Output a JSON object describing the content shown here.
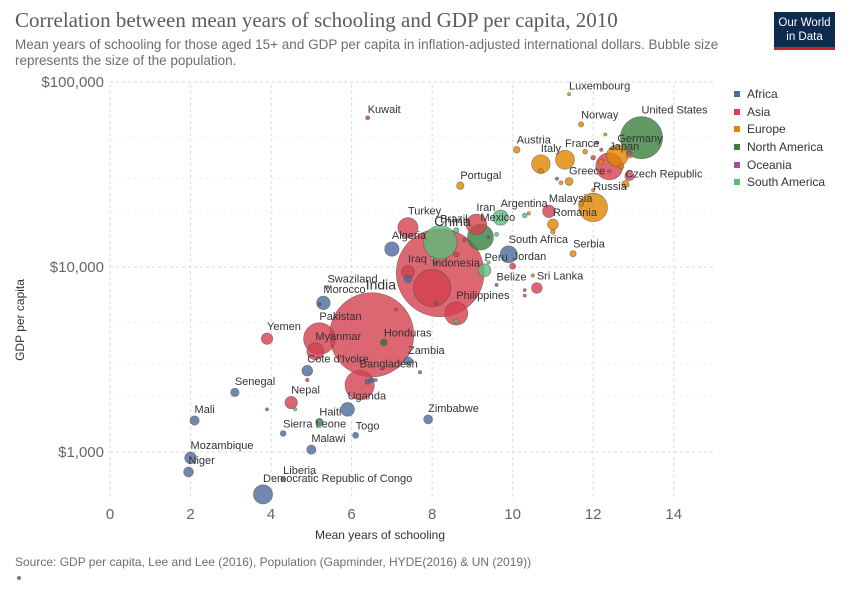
{
  "header": {
    "title": "Correlation between mean years of schooling and GDP per capita, 2010",
    "subtitle": "Mean years of schooling for those aged 15+ and GDP per capita in inflation-adjusted international dollars. Bubble size represents the size of the population."
  },
  "logo": {
    "line1": "Our World",
    "line2": "in Data"
  },
  "footer": {
    "source": "Source: GDP per capita, Lee and Lee (2016), Population (Gapminder, HYDE(2016) & UN (2019))"
  },
  "legend": {
    "items": [
      {
        "label": "Africa",
        "color": "#4c6a9c"
      },
      {
        "label": "Asia",
        "color": "#d3404e"
      },
      {
        "label": "Europe",
        "color": "#e08600"
      },
      {
        "label": "North America",
        "color": "#3a7f3f"
      },
      {
        "label": "Oceania",
        "color": "#a64ba5"
      },
      {
        "label": "South America",
        "color": "#5cbd7b"
      }
    ]
  },
  "chart_data": {
    "type": "scatter",
    "xlabel": "Mean years of schooling",
    "ylabel": "GDP per capita",
    "xlim": [
      0,
      15
    ],
    "ylim": [
      550,
      105000
    ],
    "y_scale": "log",
    "x_ticks": [
      "0",
      "2",
      "4",
      "6",
      "8",
      "10",
      "12",
      "14"
    ],
    "x_tick_values": [
      0,
      2,
      4,
      6,
      8,
      10,
      12,
      14
    ],
    "y_ticks": [
      "$1,000",
      "$10,000",
      "$100,000"
    ],
    "y_tick_values": [
      1000,
      10000,
      100000
    ],
    "grid": true,
    "legend_position": "right",
    "points": [
      {
        "name": "China",
        "region": "Asia",
        "x": 8.2,
        "y": 9300,
        "pop": 1340,
        "label": true
      },
      {
        "name": "India",
        "region": "Asia",
        "x": 6.5,
        "y": 4300,
        "pop": 1230,
        "label": true
      },
      {
        "name": "United States",
        "region": "North America",
        "x": 13.2,
        "y": 50000,
        "pop": 309,
        "label": true
      },
      {
        "name": "Indonesia",
        "region": "Asia",
        "x": 8.0,
        "y": 7700,
        "pop": 242,
        "label": true
      },
      {
        "name": "Brazil",
        "region": "South America",
        "x": 8.2,
        "y": 13600,
        "pop": 196,
        "label": true
      },
      {
        "name": "Pakistan",
        "region": "Asia",
        "x": 5.2,
        "y": 4100,
        "pop": 174,
        "label": true
      },
      {
        "name": "Bangladesh",
        "region": "Asia",
        "x": 6.2,
        "y": 2300,
        "pop": 150,
        "label": true
      },
      {
        "name": "Russia",
        "region": "Europe",
        "x": 12.0,
        "y": 21000,
        "pop": 143,
        "label": true
      },
      {
        "name": "Japan",
        "region": "Asia",
        "x": 12.4,
        "y": 35000,
        "pop": 128,
        "label": true
      },
      {
        "name": "Mexico",
        "region": "North America",
        "x": 9.2,
        "y": 14500,
        "pop": 117,
        "label": true
      },
      {
        "name": "Philippines",
        "region": "Asia",
        "x": 8.6,
        "y": 5600,
        "pop": 93,
        "label": true
      },
      {
        "name": "Germany",
        "region": "Europe",
        "x": 12.6,
        "y": 40000,
        "pop": 82,
        "label": true
      },
      {
        "name": "Iran",
        "region": "Asia",
        "x": 9.1,
        "y": 17000,
        "pop": 74,
        "label": true
      },
      {
        "name": "Turkey",
        "region": "Asia",
        "x": 7.4,
        "y": 16300,
        "pop": 72,
        "label": true
      },
      {
        "name": "France",
        "region": "Europe",
        "x": 11.3,
        "y": 38000,
        "pop": 63,
        "label": true
      },
      {
        "name": "Italy",
        "region": "Europe",
        "x": 10.7,
        "y": 36000,
        "pop": 60,
        "label": true
      },
      {
        "name": "South Africa",
        "region": "Africa",
        "x": 9.9,
        "y": 11700,
        "pop": 51,
        "label": true
      },
      {
        "name": "Myanmar",
        "region": "Asia",
        "x": 5.1,
        "y": 3500,
        "pop": 50,
        "label": true
      },
      {
        "name": "Argentina",
        "region": "South America",
        "x": 9.7,
        "y": 18500,
        "pop": 41,
        "label": true
      },
      {
        "name": "Algeria",
        "region": "Africa",
        "x": 7.0,
        "y": 12500,
        "pop": 36,
        "label": true
      },
      {
        "name": "Iraq",
        "region": "Asia",
        "x": 7.4,
        "y": 9400,
        "pop": 30,
        "label": true
      },
      {
        "name": "Peru",
        "region": "South America",
        "x": 9.3,
        "y": 9600,
        "pop": 29,
        "label": true
      },
      {
        "name": "Malaysia",
        "region": "Asia",
        "x": 10.9,
        "y": 20000,
        "pop": 28,
        "label": true
      },
      {
        "name": "Uganda",
        "region": "Africa",
        "x": 5.9,
        "y": 1700,
        "pop": 33,
        "label": true
      },
      {
        "name": "Morocco",
        "region": "Africa",
        "x": 5.3,
        "y": 6400,
        "pop": 32,
        "label": true
      },
      {
        "name": "Romania",
        "region": "Europe",
        "x": 11.0,
        "y": 17000,
        "pop": 20,
        "label": true
      },
      {
        "name": "Czech Republic",
        "region": "Europe",
        "x": 12.8,
        "y": 28000,
        "pop": 10,
        "label": true
      },
      {
        "name": "Greece",
        "region": "Europe",
        "x": 11.4,
        "y": 29000,
        "pop": 11,
        "label": true
      },
      {
        "name": "Austria",
        "region": "Europe",
        "x": 10.1,
        "y": 43000,
        "pop": 8,
        "label": true
      },
      {
        "name": "Portugal",
        "region": "Europe",
        "x": 8.7,
        "y": 27500,
        "pop": 10,
        "label": true
      },
      {
        "name": "Norway",
        "region": "Europe",
        "x": 11.7,
        "y": 59000,
        "pop": 5,
        "label": true
      },
      {
        "name": "Luxembourg",
        "region": "Europe",
        "x": 11.4,
        "y": 86000,
        "pop": 0.5,
        "label": true
      },
      {
        "name": "Kuwait",
        "region": "Asia",
        "x": 6.4,
        "y": 64000,
        "pop": 3,
        "label": true
      },
      {
        "name": "Serbia",
        "region": "Europe",
        "x": 11.5,
        "y": 11800,
        "pop": 7,
        "label": true
      },
      {
        "name": "Jordan",
        "region": "Asia",
        "x": 10.0,
        "y": 10100,
        "pop": 6.5,
        "label": true
      },
      {
        "name": "Belize",
        "region": "North America",
        "x": 9.6,
        "y": 8000,
        "pop": 0.3,
        "label": true
      },
      {
        "name": "Sri Lanka",
        "region": "Asia",
        "x": 10.6,
        "y": 7700,
        "pop": 20,
        "label": true
      },
      {
        "name": "Swaziland",
        "region": "Africa",
        "x": 5.4,
        "y": 7800,
        "pop": 1.1,
        "label": true
      },
      {
        "name": "Yemen",
        "region": "Asia",
        "x": 3.9,
        "y": 4100,
        "pop": 23,
        "label": true
      },
      {
        "name": "Honduras",
        "region": "North America",
        "x": 6.8,
        "y": 3900,
        "pop": 8,
        "label": true
      },
      {
        "name": "Cote d'Ivoire",
        "region": "Africa",
        "x": 4.9,
        "y": 2750,
        "pop": 20,
        "label": true
      },
      {
        "name": "Zambia",
        "region": "Africa",
        "x": 7.4,
        "y": 3100,
        "pop": 13,
        "label": true
      },
      {
        "name": "Senegal",
        "region": "Africa",
        "x": 3.1,
        "y": 2100,
        "pop": 12.5,
        "label": true
      },
      {
        "name": "Nepal",
        "region": "Asia",
        "x": 4.5,
        "y": 1850,
        "pop": 27,
        "label": true
      },
      {
        "name": "Mali",
        "region": "Africa",
        "x": 2.1,
        "y": 1480,
        "pop": 15,
        "label": true
      },
      {
        "name": "Haiti",
        "region": "North America",
        "x": 5.2,
        "y": 1450,
        "pop": 10,
        "label": true
      },
      {
        "name": "Sierra Leone",
        "region": "Africa",
        "x": 4.3,
        "y": 1260,
        "pop": 6,
        "label": true
      },
      {
        "name": "Togo",
        "region": "Africa",
        "x": 6.1,
        "y": 1230,
        "pop": 6.5,
        "label": true
      },
      {
        "name": "Zimbabwe",
        "region": "Africa",
        "x": 7.9,
        "y": 1500,
        "pop": 14,
        "label": true
      },
      {
        "name": "Malawi",
        "region": "Africa",
        "x": 5.0,
        "y": 1030,
        "pop": 15,
        "label": true
      },
      {
        "name": "Mozambique",
        "region": "Africa",
        "x": 2.0,
        "y": 930,
        "pop": 24,
        "label": true
      },
      {
        "name": "Niger",
        "region": "Africa",
        "x": 1.95,
        "y": 780,
        "pop": 17,
        "label": true
      },
      {
        "name": "Liberia",
        "region": "Africa",
        "x": 4.3,
        "y": 710,
        "pop": 4,
        "label": true
      },
      {
        "name": "Democratic Republic of Congo",
        "region": "Africa",
        "x": 3.8,
        "y": 590,
        "pop": 64,
        "label": true
      },
      {
        "name": "",
        "region": "Europe",
        "x": 12.5,
        "y": 44000,
        "pop": 3,
        "label": false
      },
      {
        "name": "",
        "region": "Europe",
        "x": 11.8,
        "y": 42000,
        "pop": 4,
        "label": false
      },
      {
        "name": "",
        "region": "Asia",
        "x": 12.2,
        "y": 43000,
        "pop": 2,
        "label": false
      },
      {
        "name": "",
        "region": "Asia",
        "x": 12.0,
        "y": 39000,
        "pop": 4,
        "label": false
      },
      {
        "name": "",
        "region": "Europe",
        "x": 12.9,
        "y": 40500,
        "pop": 8,
        "label": false
      },
      {
        "name": "",
        "region": "Oceania",
        "x": 12.9,
        "y": 41000,
        "pop": 4,
        "label": false
      },
      {
        "name": "",
        "region": "Asia",
        "x": 12.9,
        "y": 31000,
        "pop": 15,
        "label": false
      },
      {
        "name": "",
        "region": "Oceania",
        "x": 12.1,
        "y": 47000,
        "pop": 2,
        "label": false
      },
      {
        "name": "",
        "region": "Europe",
        "x": 12.2,
        "y": 37000,
        "pop": 5,
        "label": false
      },
      {
        "name": "",
        "region": "Europe",
        "x": 12.7,
        "y": 35000,
        "pop": 5,
        "label": false
      },
      {
        "name": "",
        "region": "Asia",
        "x": 12.4,
        "y": 33000,
        "pop": 2,
        "label": false
      },
      {
        "name": "",
        "region": "Europe",
        "x": 12.0,
        "y": 26000,
        "pop": 2,
        "label": false
      },
      {
        "name": "",
        "region": "Europe",
        "x": 11.7,
        "y": 22000,
        "pop": 5,
        "label": false
      },
      {
        "name": "",
        "region": "Europe",
        "x": 11.2,
        "y": 28500,
        "pop": 3,
        "label": false
      },
      {
        "name": "",
        "region": "Europe",
        "x": 10.7,
        "y": 33000,
        "pop": 5,
        "label": false
      },
      {
        "name": "",
        "region": "Oceania",
        "x": 11.1,
        "y": 30000,
        "pop": 2,
        "label": false
      },
      {
        "name": "",
        "region": "Europe",
        "x": 12.3,
        "y": 52000,
        "pop": 1,
        "label": false
      },
      {
        "name": "",
        "region": "Europe",
        "x": 11.0,
        "y": 15500,
        "pop": 4,
        "label": false
      },
      {
        "name": "",
        "region": "Europe",
        "x": 10.4,
        "y": 19500,
        "pop": 2,
        "label": false
      },
      {
        "name": "",
        "region": "South America",
        "x": 10.3,
        "y": 19000,
        "pop": 4,
        "label": false
      },
      {
        "name": "",
        "region": "Africa",
        "x": 9.4,
        "y": 14500,
        "pop": 1.5,
        "label": false
      },
      {
        "name": "",
        "region": "South America",
        "x": 9.6,
        "y": 15000,
        "pop": 3,
        "label": false
      },
      {
        "name": "",
        "region": "South America",
        "x": 8.6,
        "y": 15800,
        "pop": 5,
        "label": false
      },
      {
        "name": "",
        "region": "Asia",
        "x": 8.8,
        "y": 14000,
        "pop": 2,
        "label": false
      },
      {
        "name": "",
        "region": "Asia",
        "x": 8.6,
        "y": 11700,
        "pop": 5,
        "label": false
      },
      {
        "name": "",
        "region": "Europe",
        "x": 10.5,
        "y": 9000,
        "pop": 2,
        "label": false
      },
      {
        "name": "",
        "region": "Oceania",
        "x": 10.3,
        "y": 7500,
        "pop": 1,
        "label": false
      },
      {
        "name": "",
        "region": "Oceania",
        "x": 10.3,
        "y": 7000,
        "pop": 1,
        "label": false
      },
      {
        "name": "",
        "region": "South America",
        "x": 8.0,
        "y": 11100,
        "pop": 3,
        "label": false
      },
      {
        "name": "",
        "region": "North America",
        "x": 8.1,
        "y": 10500,
        "pop": 2,
        "label": false
      },
      {
        "name": "",
        "region": "South America",
        "x": 9.4,
        "y": 10600,
        "pop": 2,
        "label": false
      },
      {
        "name": "",
        "region": "North America",
        "x": 8.1,
        "y": 6400,
        "pop": 2,
        "label": false
      },
      {
        "name": "",
        "region": "South America",
        "x": 8.6,
        "y": 5100,
        "pop": 4,
        "label": false
      },
      {
        "name": "",
        "region": "Asia",
        "x": 7.1,
        "y": 5900,
        "pop": 1,
        "label": false
      },
      {
        "name": "",
        "region": "Africa",
        "x": 5.2,
        "y": 6300,
        "pop": 2,
        "label": false
      },
      {
        "name": "",
        "region": "Africa",
        "x": 7.4,
        "y": 8600,
        "pop": 10,
        "label": false
      },
      {
        "name": "",
        "region": "North America",
        "x": 6.8,
        "y": 3950,
        "pop": 3,
        "label": false
      },
      {
        "name": "",
        "region": "Asia",
        "x": 4.9,
        "y": 2450,
        "pop": 2,
        "label": false
      },
      {
        "name": "",
        "region": "Africa",
        "x": 6.5,
        "y": 2450,
        "pop": 4,
        "label": false
      },
      {
        "name": "",
        "region": "Africa",
        "x": 6.4,
        "y": 2400,
        "pop": 5,
        "label": false
      },
      {
        "name": "",
        "region": "Africa",
        "x": 7.7,
        "y": 2700,
        "pop": 2,
        "label": false
      },
      {
        "name": "",
        "region": "Oceania",
        "x": 3.9,
        "y": 1700,
        "pop": 1,
        "label": false
      },
      {
        "name": "",
        "region": "South America",
        "x": 4.6,
        "y": 1700,
        "pop": 1,
        "label": false
      },
      {
        "name": "",
        "region": "Africa",
        "x": 6.6,
        "y": 2450,
        "pop": 1,
        "label": false
      }
    ]
  }
}
